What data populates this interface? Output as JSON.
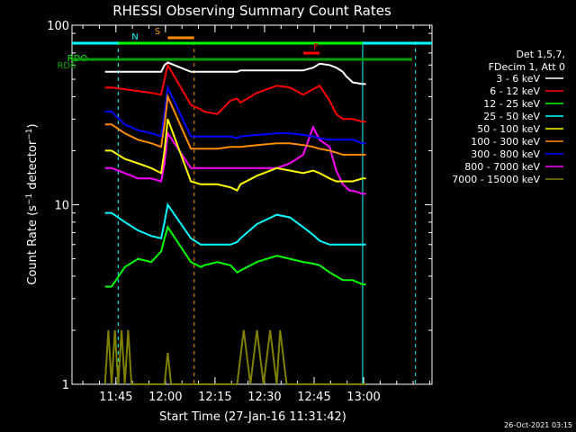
{
  "chart_data": {
    "type": "line",
    "title": "RHESSI Observing Summary Count Rates",
    "xlabel": "Start Time (27-Jan-16 11:31:42)",
    "ylabel": "Count Rate (s⁻¹ detector⁻¹)",
    "ylabel_parts": [
      "Count Rate (s",
      "−1",
      " detector",
      "−1",
      ")"
    ],
    "yscale": "log",
    "xlim_minutes": [
      0,
      109
    ],
    "ylim": [
      1,
      100
    ],
    "x_ticks": [
      {
        "label": "11:45",
        "minutes": 13.3
      },
      {
        "label": "12:00",
        "minutes": 28.3
      },
      {
        "label": "12:15",
        "minutes": 43.3
      },
      {
        "label": "12:30",
        "minutes": 58.3
      },
      {
        "label": "12:45",
        "minutes": 73.3
      },
      {
        "label": "13:00",
        "minutes": 88.3
      }
    ],
    "y_ticks": [
      {
        "label": "1",
        "value": 1
      },
      {
        "label": "10",
        "value": 10
      },
      {
        "label": "100",
        "value": 100
      }
    ],
    "legend_header": [
      "Det 1,5,7,",
      "FDecim 1, Att 0"
    ],
    "legend_placement": "right",
    "timestamp": "26-Oct-2021 03:15",
    "flags": [
      {
        "label": "RDO",
        "color": "#00ff00",
        "segments": [
          [
            0,
            109
          ]
        ]
      },
      {
        "label": "RD6",
        "color": "#00a000",
        "segments": [
          [
            0,
            109
          ]
        ]
      },
      {
        "label": "N",
        "color": "#00ffff",
        "segments": [
          [
            0,
            14
          ],
          [
            88,
            109
          ]
        ]
      },
      {
        "label": "S",
        "color": "#ff8c00",
        "segments": [
          [
            29,
            37
          ]
        ]
      },
      {
        "label": "F",
        "color": "#ff0000",
        "segments": [
          [
            70,
            75
          ]
        ]
      }
    ],
    "night_boundaries": [
      {
        "minutes": 14,
        "style": "dashed",
        "color": "#00ffff"
      },
      {
        "minutes": 88,
        "style": "solid",
        "color": "#00ffff"
      },
      {
        "minutes": 104,
        "style": "dashed",
        "color": "#00ffff"
      }
    ],
    "saa_boundaries": [
      {
        "minutes": 37,
        "style": "dashed",
        "color": "#ff8c00"
      }
    ],
    "series": [
      {
        "name": "3 - 6 keV",
        "color": "#ffffff",
        "x": [
          10,
          12,
          16,
          20,
          24,
          27,
          28,
          29,
          36,
          39,
          40,
          44,
          48,
          50,
          51,
          56,
          62,
          66,
          70,
          73,
          75,
          78,
          80,
          82,
          83,
          84,
          85,
          88,
          89
        ],
        "y": [
          55,
          55,
          55,
          55,
          55,
          55,
          60,
          62,
          55,
          55,
          55,
          55,
          55,
          55,
          56,
          56,
          56,
          56,
          56,
          58,
          61,
          60,
          58,
          55,
          52,
          50,
          48,
          47,
          47
        ]
      },
      {
        "name": "6 - 12 keV",
        "color": "#ff0000",
        "x": [
          10,
          12,
          16,
          20,
          24,
          27,
          28,
          29,
          36,
          39,
          40,
          44,
          48,
          50,
          51,
          56,
          62,
          66,
          70,
          73,
          75,
          78,
          80,
          82,
          83,
          84,
          85,
          88,
          89
        ],
        "y": [
          45,
          45,
          44,
          43,
          42,
          41,
          50,
          60,
          36,
          34,
          33,
          32,
          38,
          39,
          37,
          42,
          46,
          45,
          41,
          44,
          46,
          38,
          32,
          30,
          30,
          30,
          30,
          29,
          29
        ]
      },
      {
        "name": "12 - 25 keV",
        "color": "#00ff00",
        "x": [
          10,
          12,
          16,
          20,
          24,
          27,
          28,
          29,
          36,
          39,
          40,
          44,
          48,
          50,
          51,
          56,
          62,
          66,
          70,
          73,
          75,
          78,
          80,
          82,
          83,
          84,
          85,
          88,
          89
        ],
        "y": [
          3.5,
          3.5,
          4.5,
          5.0,
          4.8,
          5.5,
          6.5,
          7.5,
          4.8,
          4.5,
          4.6,
          4.8,
          4.6,
          4.2,
          4.3,
          4.8,
          5.2,
          5.0,
          4.8,
          4.7,
          4.6,
          4.2,
          4.0,
          3.8,
          3.8,
          3.8,
          3.8,
          3.6,
          3.6
        ]
      },
      {
        "name": "25 - 50 keV",
        "color": "#00ffff",
        "x": [
          10,
          12,
          16,
          20,
          24,
          27,
          28,
          29,
          36,
          39,
          40,
          44,
          48,
          50,
          51,
          56,
          62,
          66,
          70,
          73,
          75,
          78,
          80,
          82,
          83,
          84,
          85,
          88,
          89
        ],
        "y": [
          9.0,
          9.0,
          8.0,
          7.2,
          6.7,
          6.5,
          8.0,
          10.0,
          6.5,
          6.0,
          6.0,
          6.0,
          6.0,
          6.2,
          6.5,
          7.8,
          8.8,
          8.5,
          7.5,
          6.8,
          6.3,
          6.0,
          6.0,
          6.0,
          6.0,
          6.0,
          6.0,
          6.0,
          6.0
        ]
      },
      {
        "name": "50 - 100 keV",
        "color": "#ffff00",
        "x": [
          10,
          12,
          16,
          20,
          24,
          27,
          28,
          29,
          36,
          39,
          40,
          44,
          48,
          50,
          51,
          56,
          62,
          66,
          70,
          73,
          75,
          78,
          80,
          82,
          83,
          84,
          85,
          88,
          89
        ],
        "y": [
          20,
          20,
          18,
          17,
          16,
          15,
          20,
          30,
          13.5,
          13,
          13,
          13,
          12.5,
          12,
          13,
          14.5,
          16,
          15.5,
          15,
          15.5,
          15,
          14,
          13.5,
          13.5,
          13.5,
          13.5,
          13.5,
          14,
          14
        ]
      },
      {
        "name": "100 - 300 keV",
        "color": "#ff8c00",
        "x": [
          10,
          12,
          16,
          20,
          24,
          27,
          28,
          29,
          36,
          39,
          40,
          44,
          48,
          50,
          51,
          56,
          62,
          66,
          70,
          73,
          75,
          78,
          80,
          82,
          83,
          84,
          85,
          88,
          89
        ],
        "y": [
          28,
          28,
          25,
          23,
          22,
          21,
          28,
          40,
          20.5,
          20.5,
          20.5,
          20.5,
          21,
          21,
          21,
          21.5,
          22,
          22,
          21.5,
          21,
          20.5,
          20,
          19.5,
          19,
          19,
          19,
          19,
          19,
          19
        ]
      },
      {
        "name": "300 - 800 keV",
        "color": "#0000ff",
        "x": [
          10,
          12,
          16,
          20,
          24,
          27,
          28,
          29,
          36,
          39,
          40,
          44,
          48,
          50,
          51,
          56,
          62,
          66,
          70,
          73,
          75,
          78,
          80,
          82,
          83,
          84,
          85,
          88,
          89
        ],
        "y": [
          33,
          33,
          28,
          26,
          25,
          24,
          32,
          45,
          24,
          24,
          24,
          24,
          24,
          23.5,
          24,
          24.5,
          25,
          25,
          24.5,
          24,
          23.5,
          23,
          23,
          23,
          23,
          23,
          23,
          22,
          22
        ]
      },
      {
        "name": "800 - 7000 keV",
        "color": "#ff00ff",
        "x": [
          10,
          12,
          16,
          20,
          24,
          27,
          28,
          29,
          36,
          39,
          40,
          44,
          48,
          50,
          51,
          56,
          62,
          66,
          70,
          73,
          75,
          78,
          80,
          82,
          83,
          84,
          85,
          88,
          89
        ],
        "y": [
          16,
          16,
          15,
          14,
          14,
          13.5,
          17,
          25,
          16,
          16,
          16,
          16,
          16,
          16,
          16,
          16,
          16,
          17,
          19,
          27,
          23,
          21,
          15.5,
          13,
          12.5,
          12,
          12,
          11.5,
          11.5
        ]
      },
      {
        "name": "7000 - 15000 keV",
        "color": "#808000",
        "x": [
          10,
          11,
          12,
          13,
          14,
          15,
          16,
          17,
          18,
          19,
          20,
          21,
          22,
          23,
          24,
          25,
          26,
          27,
          28,
          29,
          30,
          35,
          40,
          45,
          50,
          52,
          54,
          56,
          58,
          60,
          62,
          63,
          65,
          70,
          80,
          89
        ],
        "y": [
          1,
          2.0,
          1,
          2.0,
          1,
          2.0,
          1,
          2.0,
          1,
          1,
          1,
          1,
          1,
          1,
          1,
          1,
          1,
          1,
          1,
          1.5,
          1,
          1,
          1,
          1,
          1,
          2.0,
          1,
          2.0,
          1,
          2.0,
          1,
          2.0,
          1,
          1,
          1,
          1
        ]
      }
    ]
  }
}
